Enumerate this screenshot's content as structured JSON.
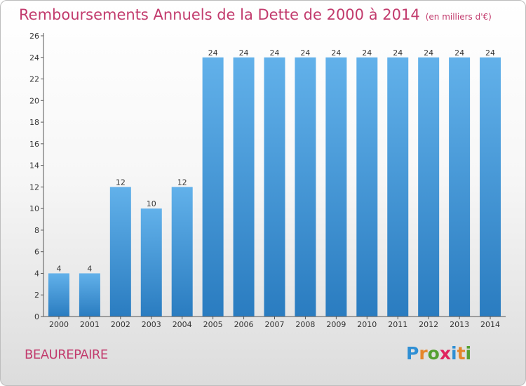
{
  "title": "Remboursements Annuels de la Dette de 2000 à 2014",
  "unit_note": "(en milliers d'€)",
  "town": "BEAUREPAIRE",
  "logo": {
    "text": "Proxiti",
    "letter_colors": [
      "#2f8fd4",
      "#e5862a",
      "#55a032",
      "#e0245e",
      "#2f8fd4",
      "#e5862a",
      "#55a032"
    ]
  },
  "colors": {
    "title": "#c23b6d",
    "bar_top": "#62b1ea",
    "bar_bottom": "#2a7cc0"
  },
  "chart_data": {
    "type": "bar",
    "title": "Remboursements Annuels de la Dette de 2000 à 2014",
    "categories": [
      "2000",
      "2001",
      "2002",
      "2003",
      "2004",
      "2005",
      "2006",
      "2007",
      "2008",
      "2009",
      "2010",
      "2011",
      "2012",
      "2013",
      "2014"
    ],
    "values": [
      4,
      4,
      12,
      10,
      12,
      24,
      24,
      24,
      24,
      24,
      24,
      24,
      24,
      24,
      24
    ],
    "ylim": [
      0,
      26
    ],
    "yticks": [
      0,
      2,
      4,
      6,
      8,
      10,
      12,
      14,
      16,
      18,
      20,
      22,
      24,
      26
    ],
    "grid": false,
    "data_labels": true
  }
}
